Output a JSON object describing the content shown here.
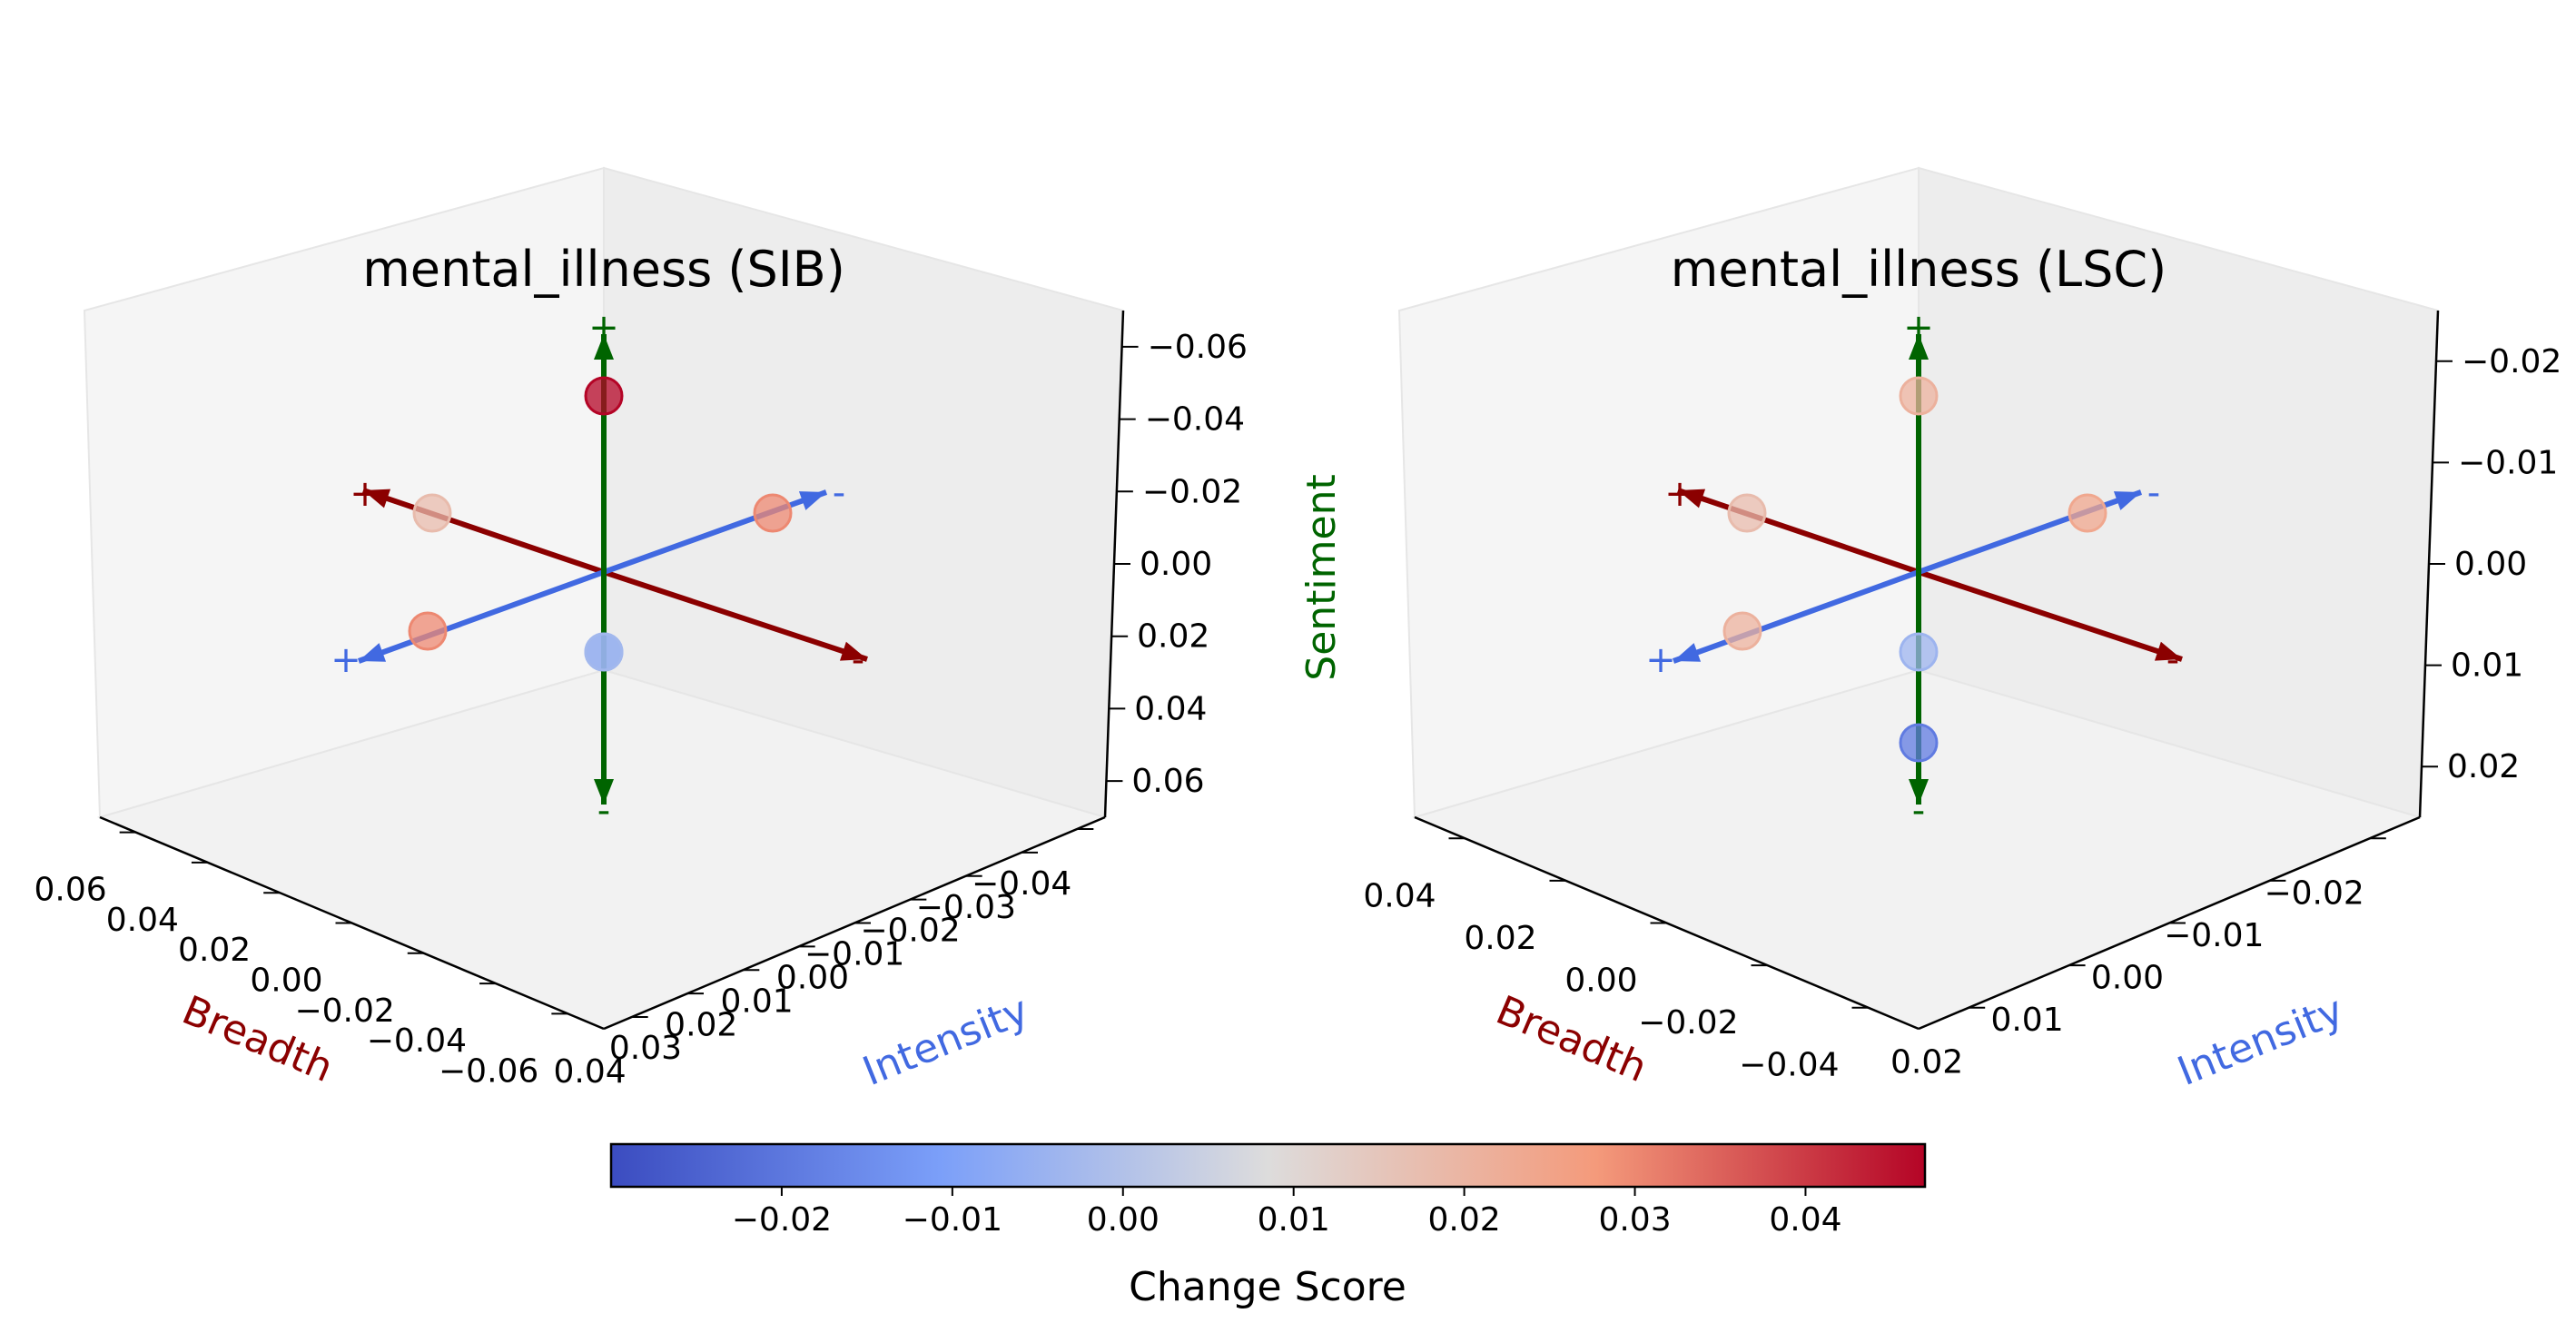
{
  "chart_data": [
    {
      "type": "scatter",
      "projection": "3d",
      "title": "mental_illness (SIB)",
      "axes": {
        "x": {
          "label": "Breadth",
          "color": "#8b0000",
          "ticks": [
            "0.06",
            "0.04",
            "0.02",
            "0.00",
            "−0.02",
            "−0.04",
            "−0.06"
          ]
        },
        "y": {
          "label": "Intensity",
          "color": "#4169e1",
          "ticks": [
            "0.04",
            "0.03",
            "0.02",
            "0.01",
            "0.00",
            "−0.01",
            "−0.02",
            "−0.03",
            "−0.04"
          ]
        },
        "z": {
          "label": "Sentiment",
          "color": "#006400",
          "ticks": [
            "0.06",
            "0.04",
            "0.02",
            "0.00",
            "−0.02",
            "−0.04",
            "−0.06"
          ]
        }
      },
      "arrow_signs": {
        "breadth": [
          "+",
          "-"
        ],
        "intensity": [
          "+",
          "-"
        ],
        "sentiment": [
          "+",
          "-"
        ]
      },
      "points": [
        {
          "axis": "Sentiment",
          "direction": "+",
          "change_score": 0.047
        },
        {
          "axis": "Sentiment",
          "direction": "-",
          "change_score": -0.012
        },
        {
          "axis": "Breadth",
          "direction": "+",
          "change_score": 0.018
        },
        {
          "axis": "Breadth",
          "direction": "-",
          "change_score": 0.03
        },
        {
          "axis": "Intensity",
          "direction": "+",
          "change_score": 0.03
        },
        {
          "axis": "Intensity",
          "direction": "-",
          "change_score": -0.003
        }
      ]
    },
    {
      "type": "scatter",
      "projection": "3d",
      "title": "mental_illness (LSC)",
      "axes": {
        "x": {
          "label": "Breadth",
          "color": "#8b0000",
          "ticks": [
            "0.04",
            "0.02",
            "0.00",
            "−0.02",
            "−0.04"
          ]
        },
        "y": {
          "label": "Intensity",
          "color": "#4169e1",
          "ticks": [
            "0.02",
            "0.01",
            "0.00",
            "−0.01",
            "−0.02"
          ]
        },
        "z": {
          "label": "Sentiment",
          "color": "#006400",
          "ticks": [
            "0.02",
            "0.01",
            "0.00",
            "−0.01",
            "−0.02"
          ]
        }
      },
      "arrow_signs": {
        "breadth": [
          "+",
          "-"
        ],
        "intensity": [
          "+",
          "-"
        ],
        "sentiment": [
          "+",
          "-"
        ]
      },
      "points": [
        {
          "axis": "Sentiment",
          "direction": "+",
          "change_score": 0.021
        },
        {
          "axis": "Sentiment",
          "direction": "-",
          "change_score": -0.019
        },
        {
          "axis": "Breadth",
          "direction": "+",
          "change_score": 0.018
        },
        {
          "axis": "Breadth",
          "direction": "-",
          "change_score": 0.021
        },
        {
          "axis": "Intensity",
          "direction": "+",
          "change_score": 0.024
        },
        {
          "axis": "Intensity",
          "direction": "-",
          "change_score": -0.004
        }
      ]
    }
  ],
  "colorbar": {
    "label": "Change Score",
    "colormap": "coolwarm",
    "range": [
      -0.03,
      0.047
    ],
    "ticks": [
      {
        "value": -0.02,
        "label": "−0.02"
      },
      {
        "value": -0.01,
        "label": "−0.01"
      },
      {
        "value": 0.0,
        "label": "0.00"
      },
      {
        "value": 0.01,
        "label": "0.01"
      },
      {
        "value": 0.02,
        "label": "0.02"
      },
      {
        "value": 0.03,
        "label": "0.03"
      },
      {
        "value": 0.04,
        "label": "0.04"
      }
    ]
  },
  "colors": {
    "breadth": "#8b0000",
    "intensity": "#4169e1",
    "sentiment": "#006400"
  }
}
